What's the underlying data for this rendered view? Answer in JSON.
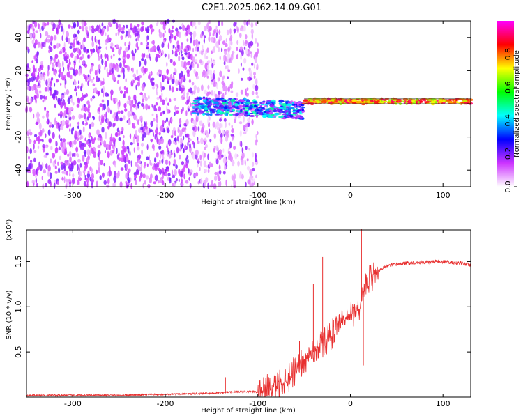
{
  "title": "C2E1.2025.062.14.09.G01",
  "chart_data": [
    {
      "type": "heatmap",
      "xlabel": "Height of straight line (km)",
      "ylabel": "Frequency (Hz)",
      "xlim": [
        -350,
        130
      ],
      "ylim": [
        -50,
        50
      ],
      "xticks": [
        -300,
        -200,
        -100,
        0,
        100
      ],
      "xtick_labels": [
        "-300",
        "-200",
        "-100",
        "0",
        "100"
      ],
      "yticks": [
        -40,
        -20,
        0,
        20,
        40
      ],
      "ytick_labels": [
        "-40",
        "-20",
        "0",
        "20",
        "40"
      ],
      "colorbar": {
        "label": "Normalized spectral amplitude",
        "range": [
          0,
          1
        ],
        "ticks": [
          0.0,
          0.2,
          0.4,
          0.6,
          0.8
        ],
        "tick_labels": [
          "0.0",
          "0.2",
          "0.4",
          "0.6",
          "0.8"
        ],
        "colormap": "rainbow",
        "colors": [
          "#ffffff",
          "#cc33ff",
          "#0000ff",
          "#00ffff",
          "#00ff00",
          "#ffff00",
          "#ff0000",
          "#ff00ff"
        ]
      },
      "description_regions": [
        {
          "x_range": [
            -350,
            -170
          ],
          "freq_range": [
            -50,
            50
          ],
          "amplitude": 0.15
        },
        {
          "x_range": [
            -170,
            -100
          ],
          "freq_range": [
            -50,
            50
          ],
          "amplitude": 0.08
        },
        {
          "x_range": [
            -170,
            -50
          ],
          "freq_range": [
            -6,
            4
          ],
          "amplitude": 0.35
        },
        {
          "x_range": [
            -50,
            130
          ],
          "freq_range": [
            0,
            3
          ],
          "amplitude": 0.85
        }
      ]
    },
    {
      "type": "line",
      "xlabel": "Height of straight line (km)",
      "ylabel": "SNR (10 * v/v)",
      "scale_label": "(x10⁴)",
      "xlim": [
        -350,
        130
      ],
      "ylim": [
        0,
        1.85
      ],
      "xticks": [
        -300,
        -200,
        -100,
        0,
        100
      ],
      "xtick_labels": [
        "-300",
        "-200",
        "-100",
        "0",
        "100"
      ],
      "yticks": [
        0.5,
        1.0,
        1.5
      ],
      "ytick_labels": [
        "0.5",
        "1.0",
        "1.5"
      ],
      "line_color": "#e83030",
      "series": [
        {
          "x": [
            -350,
            -300,
            -250,
            -200,
            -160,
            -140,
            -120,
            -105,
            -100,
            -90,
            -80,
            -70,
            -60,
            -50,
            -40,
            -30,
            -20,
            -10,
            0,
            10,
            15,
            20,
            30,
            40,
            50,
            60,
            70,
            80,
            90,
            100,
            110,
            120,
            130
          ],
          "values": [
            0.02,
            0.02,
            0.02,
            0.03,
            0.04,
            0.05,
            0.06,
            0.06,
            0.05,
            0.08,
            0.12,
            0.2,
            0.3,
            0.4,
            0.5,
            0.6,
            0.7,
            0.8,
            0.9,
            1.0,
            1.15,
            1.3,
            1.4,
            1.45,
            1.47,
            1.48,
            1.49,
            1.49,
            1.5,
            1.5,
            1.49,
            1.48,
            1.46
          ]
        }
      ],
      "spikes": [
        {
          "x": -135,
          "y": 0.22
        },
        {
          "x": -55,
          "y": 0.62
        },
        {
          "x": -40,
          "y": 1.25
        },
        {
          "x": -30,
          "y": 1.55
        },
        {
          "x": 12,
          "y": 1.86
        },
        {
          "x": 14,
          "y": 0.35
        }
      ]
    }
  ]
}
